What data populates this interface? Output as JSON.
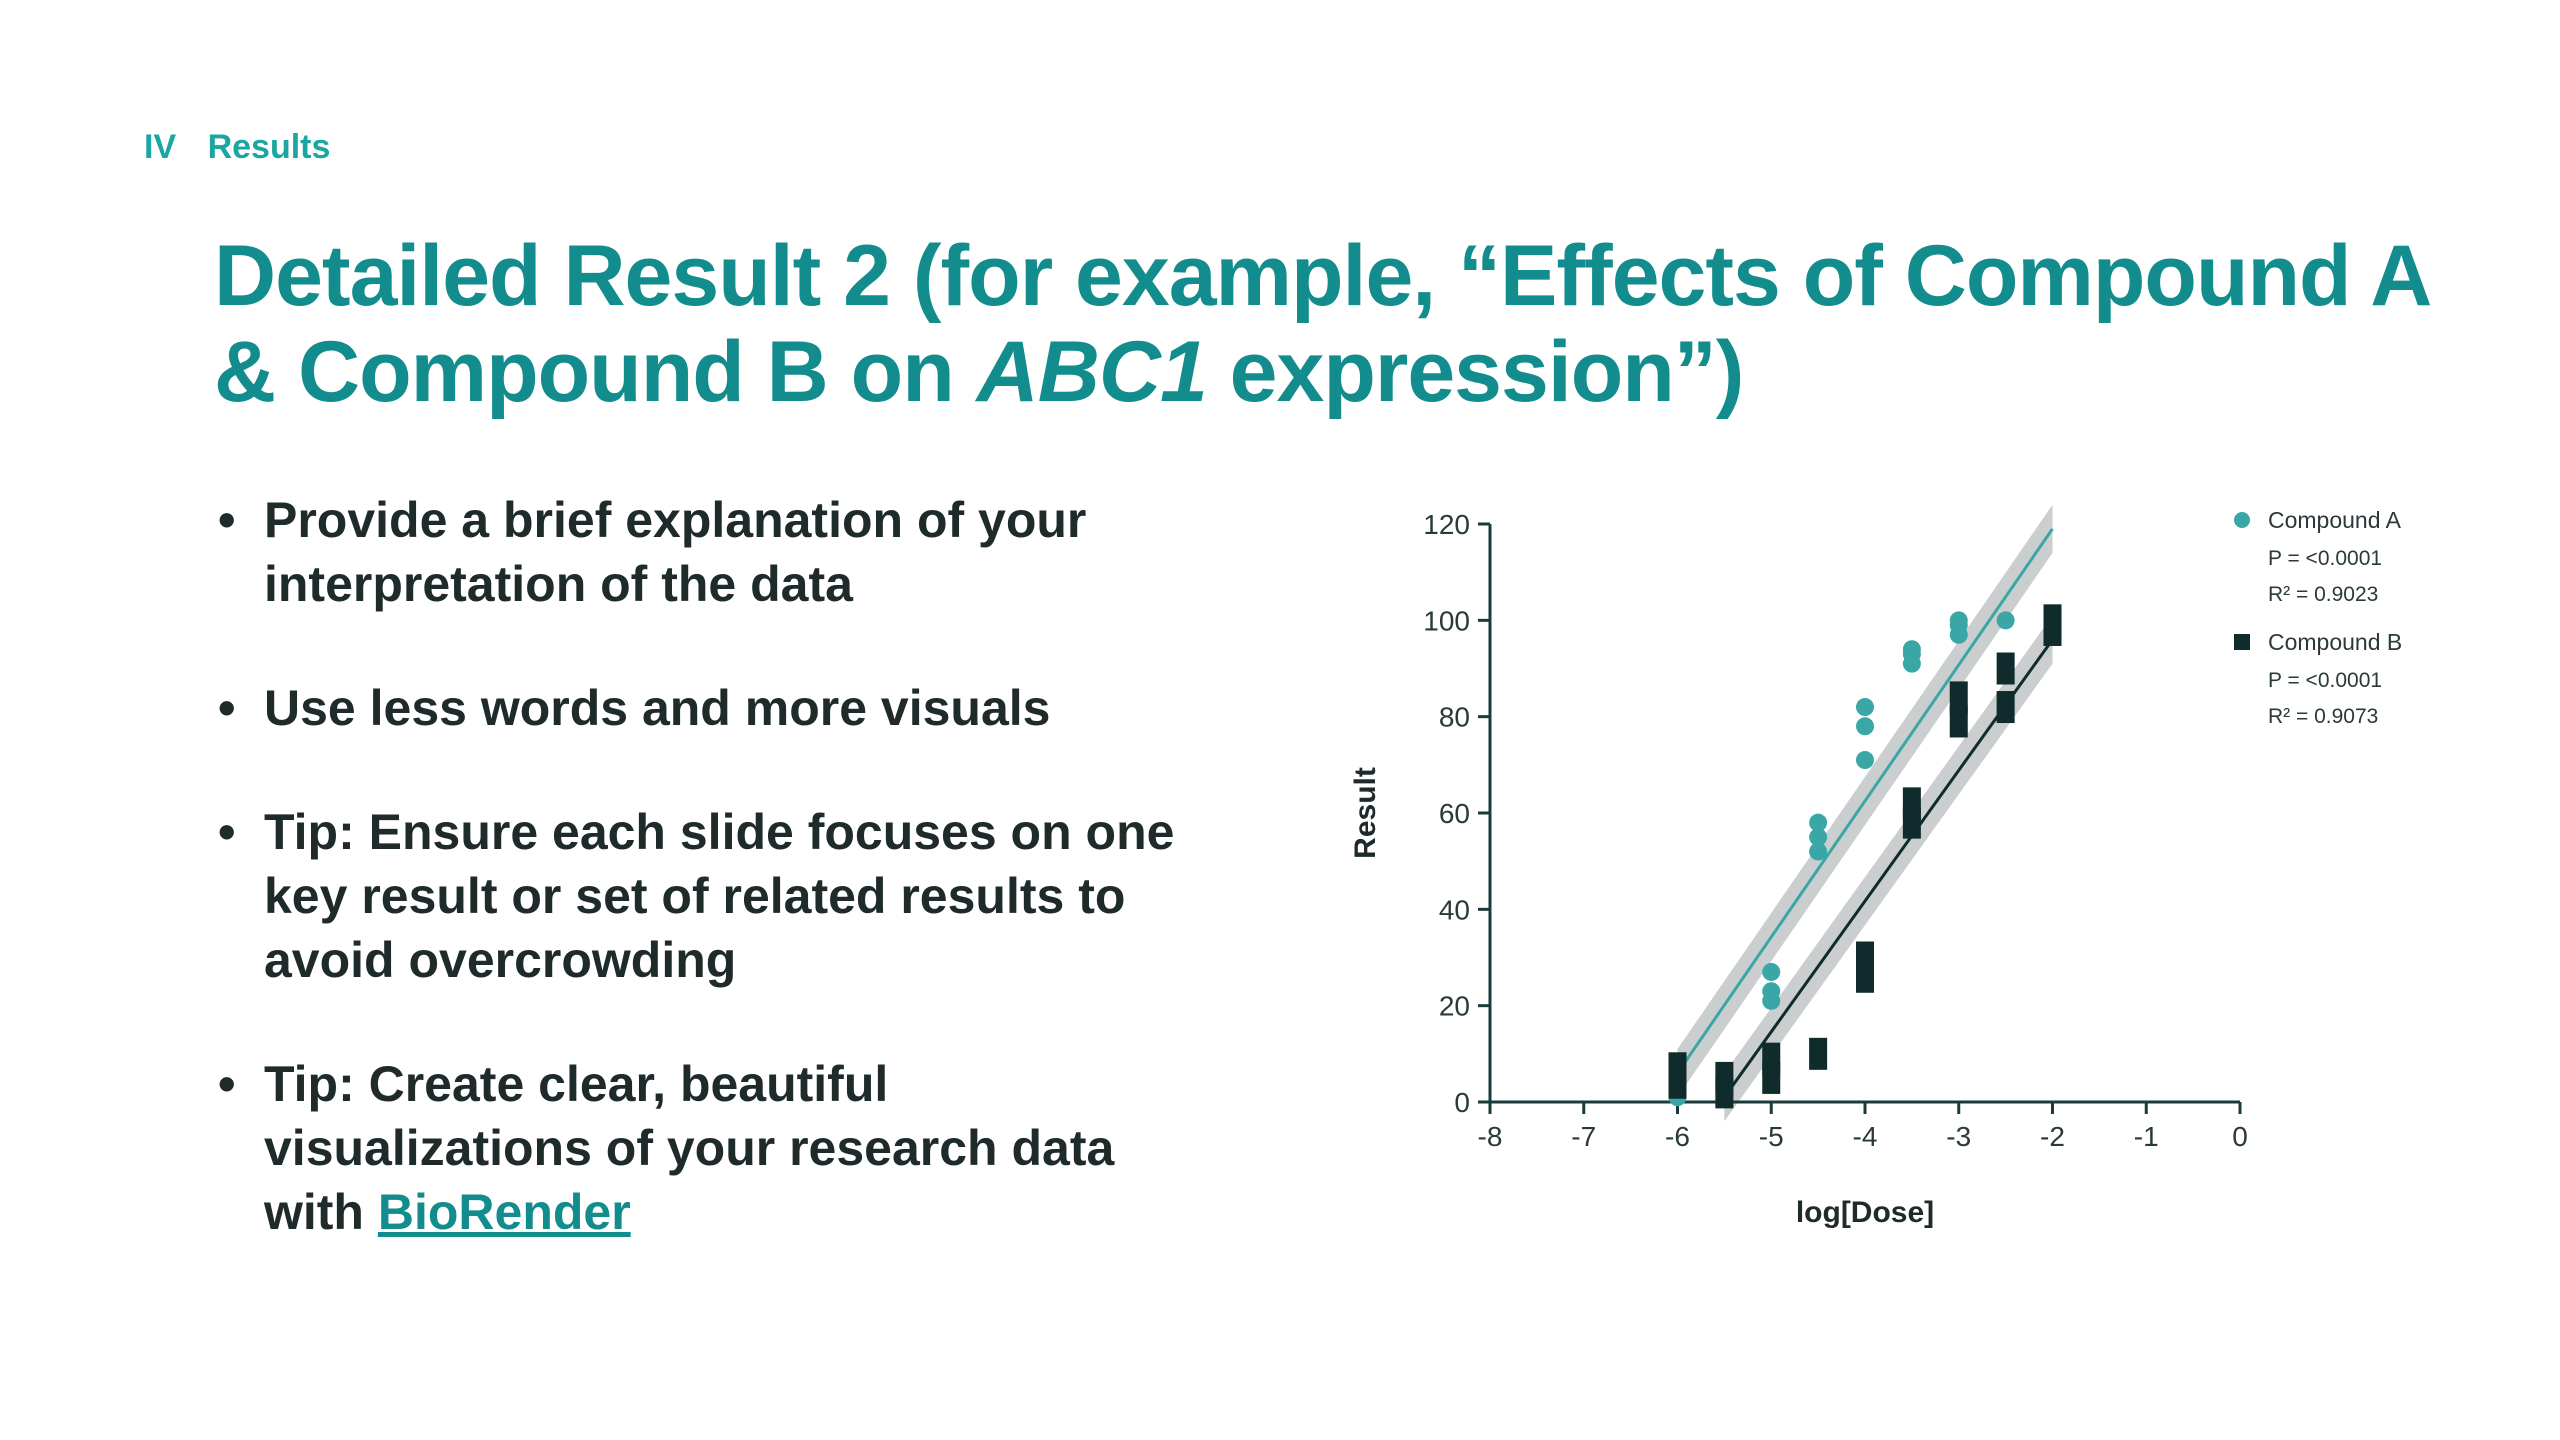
{
  "header": {
    "section_number": "IV",
    "section_name": "Results"
  },
  "title": {
    "part1": "Detailed Result 2 (for example, “Effects of Compound A & Compound B on ",
    "gene": "ABC1",
    "part2": " expression”)"
  },
  "bullets": [
    {
      "marker": "•",
      "text": "Provide a brief explanation of your interpretation of the data"
    },
    {
      "marker": "•",
      "text": "Use less words and more visuals"
    },
    {
      "marker": "•",
      "text": "Tip: Ensure each slide focuses on one key result or set of related results to avoid overcrowding"
    },
    {
      "marker": "•",
      "text": "Tip: Create clear, beautiful visualizations of your research data with ",
      "link_text": "BioRender"
    }
  ],
  "colors": {
    "accent": "#128c8c",
    "section": "#1aa6a1",
    "compound_a": "#3aa6a6",
    "compound_b": "#0f2b2b",
    "ci_band": "#b9bdbd",
    "axis": "#1b3b3b"
  },
  "chart_data": {
    "type": "scatter",
    "xlabel": "log[Dose]",
    "ylabel": "Result",
    "xlim": [
      -8,
      0
    ],
    "ylim": [
      0,
      120
    ],
    "xticks": [
      -8,
      -7,
      -6,
      -5,
      -4,
      -3,
      -2,
      -1,
      0
    ],
    "yticks": [
      0,
      20,
      40,
      60,
      80,
      100,
      120
    ],
    "legend_position": "top-right",
    "grid": false,
    "series": [
      {
        "name": "Compound A",
        "marker": "circle",
        "color": "#3aa6a6",
        "stats": [
          "P = <0.0001",
          "R² = 0.9023"
        ],
        "points": [
          [
            -6,
            1
          ],
          [
            -5,
            21
          ],
          [
            -5,
            23
          ],
          [
            -5,
            27
          ],
          [
            -4.5,
            52
          ],
          [
            -4.5,
            55
          ],
          [
            -4.5,
            58
          ],
          [
            -4,
            71
          ],
          [
            -4,
            78
          ],
          [
            -4,
            82
          ],
          [
            -3.5,
            91
          ],
          [
            -3.5,
            93
          ],
          [
            -3.5,
            94
          ],
          [
            -3,
            97
          ],
          [
            -3,
            99
          ],
          [
            -3,
            100
          ],
          [
            -2.5,
            100
          ]
        ],
        "fit": {
          "x": [
            -6,
            -2
          ],
          "y": [
            6,
            119
          ]
        },
        "ci_halfwidth": 5
      },
      {
        "name": "Compound B",
        "marker": "square",
        "color": "#0f2b2b",
        "stats": [
          "P = <0.0001",
          "R² = 0.9073"
        ],
        "points": [
          [
            -6,
            4
          ],
          [
            -6,
            7
          ],
          [
            -5.5,
            2
          ],
          [
            -5.5,
            5
          ],
          [
            -5,
            5
          ],
          [
            -5,
            9
          ],
          [
            -4.5,
            10
          ],
          [
            -4,
            26
          ],
          [
            -4,
            30
          ],
          [
            -3.5,
            58
          ],
          [
            -3.5,
            62
          ],
          [
            -3,
            79
          ],
          [
            -3,
            84
          ],
          [
            -2.5,
            82
          ],
          [
            -2.5,
            90
          ],
          [
            -2,
            98
          ],
          [
            -2,
            100
          ]
        ],
        "fit": {
          "x": [
            -5.5,
            -2
          ],
          "y": [
            1,
            96
          ]
        },
        "ci_halfwidth": 5
      }
    ]
  }
}
